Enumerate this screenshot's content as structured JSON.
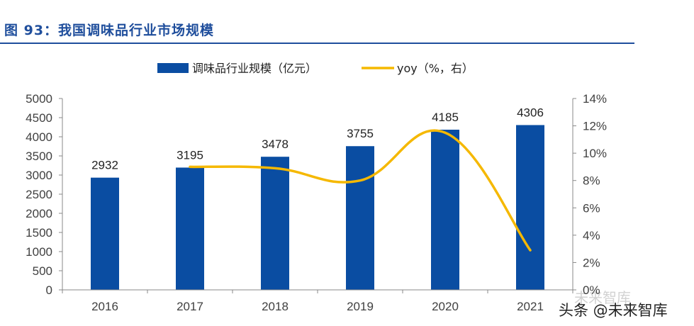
{
  "header": {
    "title": "图 93：我国调味品行业市场规模"
  },
  "watermark": {
    "main": "头条 @未来智库",
    "ghost": "未来智库"
  },
  "colors": {
    "bar": "#0a4da2",
    "line": "#f5b800",
    "title": "#1f4e9c",
    "axis_text": "#404040"
  },
  "chart_data": {
    "type": "bar",
    "title": "",
    "categories": [
      "2016",
      "2017",
      "2018",
      "2019",
      "2020",
      "2021"
    ],
    "series": [
      {
        "name": "调味品行业规模（亿元）",
        "type": "bar",
        "axis": "left",
        "values": [
          2932,
          3195,
          3478,
          3755,
          4185,
          4306
        ],
        "data_labels": [
          "2932",
          "3195",
          "3478",
          "3755",
          "4185",
          "4306"
        ]
      },
      {
        "name": "yoy（%，右）",
        "type": "line",
        "axis": "right",
        "values": [
          null,
          9.0,
          8.9,
          8.0,
          11.5,
          2.9
        ]
      }
    ],
    "y_left": {
      "range": [
        0,
        5000
      ],
      "ticks": [
        "0",
        "500",
        "1000",
        "1500",
        "2000",
        "2500",
        "3000",
        "3500",
        "4000",
        "4500",
        "5000"
      ]
    },
    "y_right": {
      "range": [
        0,
        14
      ],
      "ticks": [
        "0%",
        "2%",
        "4%",
        "6%",
        "8%",
        "10%",
        "12%",
        "14%"
      ]
    },
    "legend_position": "top-center",
    "grid": false
  }
}
